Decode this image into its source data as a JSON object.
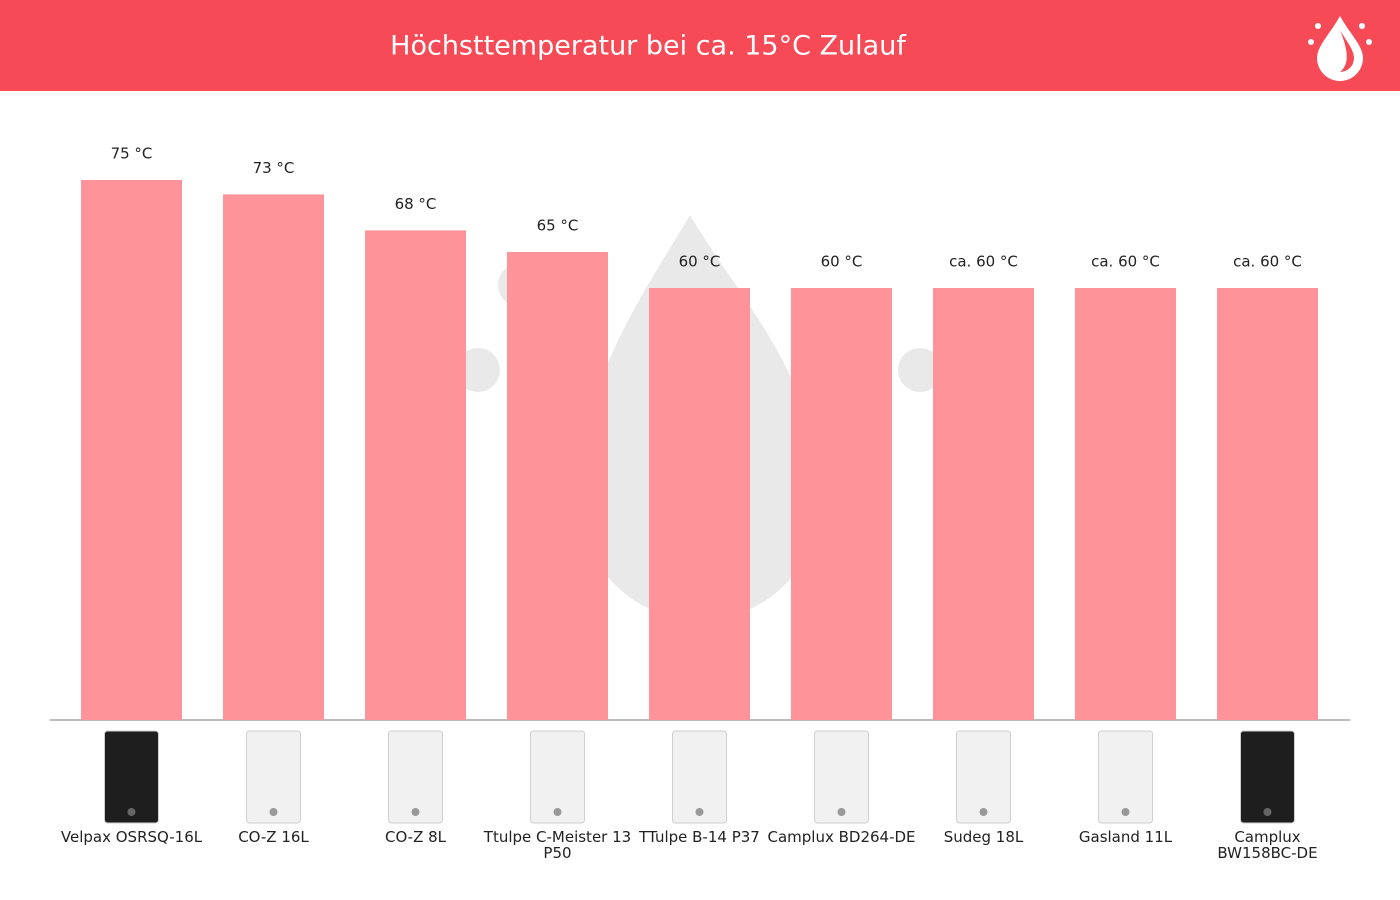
{
  "chart_data": {
    "type": "bar",
    "title": "Höchsttemperatur bei ca. 15°C Zulauf",
    "categories": [
      "Velpax OSRSQ-16L",
      "CO-Z 16L",
      "CO-Z 8L",
      "Ttulpe C-Meister 13 P50",
      "TTulpe B-14 P37",
      "Camplux BD264-DE",
      "Sudeg 18L",
      "Gasland 11L",
      "Camplux BW158BC-DE"
    ],
    "values": [
      75,
      73,
      68,
      65,
      60,
      60,
      60,
      60,
      60
    ],
    "value_labels": [
      "75 °C",
      "73 °C",
      "68 °C",
      "65 °C",
      "60 °C",
      "60 °C",
      "ca. 60 °C",
      "ca. 60 °C",
      "ca. 60 °C"
    ],
    "color": "#ff939a",
    "ylim": [
      0,
      75
    ]
  }
}
